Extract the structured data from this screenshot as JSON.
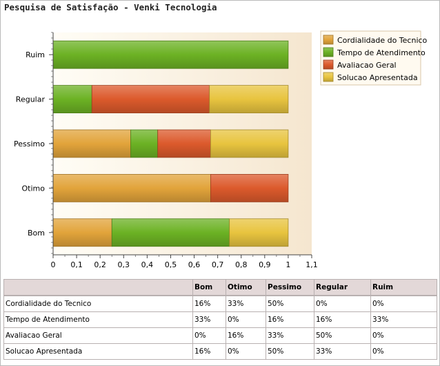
{
  "title": "Pesquisa de Satisfação - Venki Tecnologia",
  "chart_data": {
    "type": "bar",
    "orientation": "horizontal",
    "stacked": true,
    "categories": [
      "Bom",
      "Otimo",
      "Pessimo",
      "Regular",
      "Ruim"
    ],
    "series": [
      {
        "name": "Cordialidade do Tecnico",
        "values": [
          0.25,
          0.67,
          0.33,
          0.0,
          0.0
        ],
        "color": "#e2a43b"
      },
      {
        "name": "Tempo de Atendimento",
        "values": [
          0.5,
          0.0,
          0.115,
          0.165,
          1.0
        ],
        "color": "#6cb224"
      },
      {
        "name": "Avaliacao Geral",
        "values": [
          0.0,
          0.33,
          0.225,
          0.5,
          0.0
        ],
        "color": "#dc5a2c"
      },
      {
        "name": "Solucao Apresentada",
        "values": [
          0.25,
          0.0,
          0.33,
          0.335,
          0.0
        ],
        "color": "#e8c43f"
      }
    ],
    "xlim": [
      0,
      1.1
    ],
    "xticks": [
      "0",
      "0,1",
      "0,2",
      "0,3",
      "0,4",
      "0,5",
      "0,6",
      "0,7",
      "0,8",
      "0,9",
      "1",
      "1,1"
    ],
    "grid": false,
    "legend_position": "top-right"
  },
  "table": {
    "columns": [
      "",
      "Bom",
      "Otimo",
      "Pessimo",
      "Regular",
      "Ruim"
    ],
    "rows": [
      {
        "label": "Cordialidade do Tecnico",
        "cells": [
          "16%",
          "33%",
          "50%",
          "0%",
          "0%"
        ]
      },
      {
        "label": "Tempo de Atendimento",
        "cells": [
          "33%",
          "0%",
          "16%",
          "16%",
          "33%"
        ]
      },
      {
        "label": "Avaliacao Geral",
        "cells": [
          "0%",
          "16%",
          "33%",
          "50%",
          "0%"
        ]
      },
      {
        "label": "Solucao Apresentada",
        "cells": [
          "16%",
          "0%",
          "50%",
          "33%",
          "0%"
        ]
      }
    ]
  }
}
